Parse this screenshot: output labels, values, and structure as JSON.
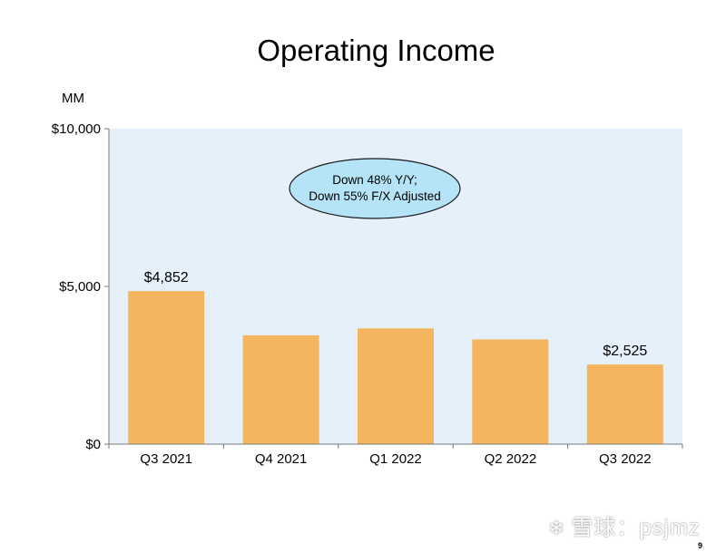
{
  "title": "Operating Income",
  "unit": "MM",
  "callout": {
    "line1": "Down 48% Y/Y;",
    "line2": "Down 55% F/X Adjusted"
  },
  "watermark": {
    "icon": "snowball-icon",
    "text": "雪球：psjmz"
  },
  "page_number": "9",
  "colors": {
    "bar": "#f5b55f",
    "plot_bg": "#e5f0fb",
    "callout_fill": "#b5e3f7"
  },
  "chart_data": {
    "type": "bar",
    "categories": [
      "Q3 2021",
      "Q4 2021",
      "Q1 2022",
      "Q2 2022",
      "Q3 2022"
    ],
    "values": [
      4852,
      3450,
      3670,
      3320,
      2525
    ],
    "data_labels": [
      "$4,852",
      "",
      "",
      "",
      "$2,525"
    ],
    "ylim": [
      0,
      10000
    ],
    "yticks": [
      0,
      5000,
      10000
    ],
    "ytick_labels": [
      "$0",
      "$5,000",
      "$10,000"
    ],
    "ylabel": "MM",
    "grid": false
  }
}
